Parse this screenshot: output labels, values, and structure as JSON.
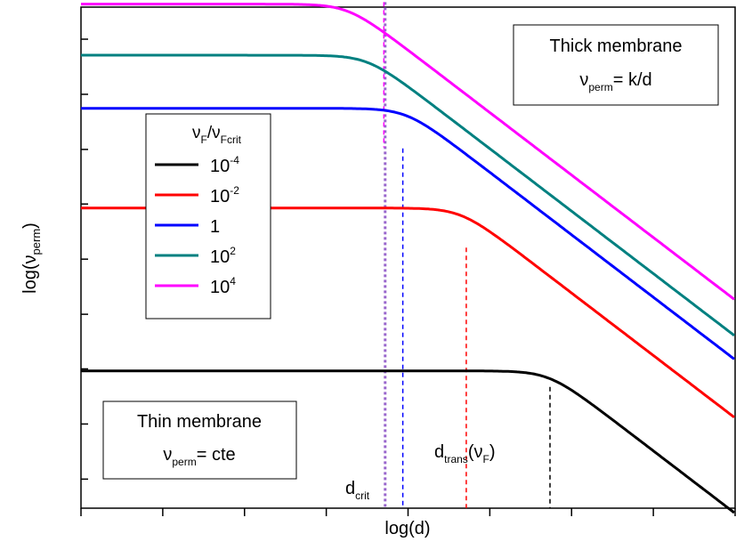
{
  "chart_data": {
    "type": "line",
    "xlabel": "log(d)",
    "ylabel_base": "log(ν",
    "ylabel_sub": "perm",
    "ylabel_tail": ")",
    "x_range": [
      0,
      1
    ],
    "y_range": [
      0,
      1
    ],
    "legend": {
      "title": {
        "a": "ν",
        "a_sub": "F",
        "b": "/ν",
        "b_sub": "Fcrit"
      },
      "placement": "upper-left"
    },
    "series": [
      {
        "name_base": "10",
        "name_sup": "-4",
        "color": "#000000",
        "plateau": 0.274,
        "knee": 0.715,
        "dtrans": 0.71
      },
      {
        "name_base": "10",
        "name_sup": "-2",
        "color": "#ff0000",
        "plateau": 0.599,
        "knee": 0.58,
        "dtrans": 0.585
      },
      {
        "name_base": "1",
        "name_sup": "",
        "color": "#0000ff",
        "plateau": 0.798,
        "knee": 0.497,
        "dtrans": 0.497
      },
      {
        "name_base": "10",
        "name_sup": "2",
        "color": "#008080",
        "plateau": 0.904,
        "knee": 0.438,
        "dtrans": 0.465
      },
      {
        "name_base": "10",
        "name_sup": "4",
        "color": "#ff00ff",
        "plateau": 1.006,
        "knee": 0.408,
        "dtrans": 0.465
      }
    ],
    "slope": -1,
    "dcrit": {
      "x": 0.465,
      "color": "#9966cc"
    },
    "annotations": {
      "thick": {
        "line1": "Thick membrane",
        "v": "ν",
        "sub": "perm",
        "rest": "= k/d"
      },
      "thin": {
        "line1": "Thin membrane",
        "v": "ν",
        "sub": "perm",
        "rest": "= cte"
      },
      "dcrit_label": {
        "base": "d",
        "sub": "crit"
      },
      "dtrans_label": {
        "base": "d",
        "sub": "trans",
        "paren_open": "(ν",
        "paren_sub": "F",
        "paren_close": ")"
      }
    }
  }
}
